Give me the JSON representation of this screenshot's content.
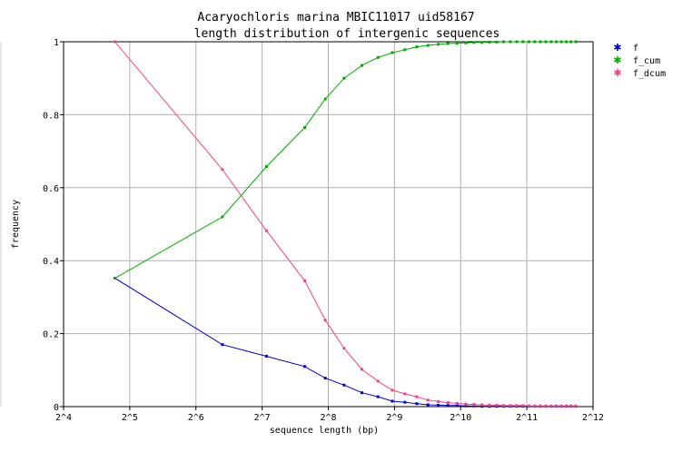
{
  "chart_data": {
    "type": "line",
    "title": "Acaryochloris marina MBIC11017 uid58167",
    "subtitle": "length distribution of intergenic sequences",
    "xlabel": "sequence length (bp)",
    "ylabel": "frequency",
    "x_scale": "log2",
    "xlim": [
      16,
      4096
    ],
    "ylim": [
      0,
      1
    ],
    "x_ticks": [
      "2^4",
      "2^5",
      "2^6",
      "2^7",
      "2^8",
      "2^9",
      "2^10",
      "2^11",
      "2^12"
    ],
    "y_ticks": [
      "0",
      "0.2",
      "0.4",
      "0.6",
      "0.8",
      "1"
    ],
    "grid": true,
    "legend_position": "top-right",
    "x": [
      27.4,
      84.4,
      134,
      200,
      248,
      302,
      364,
      431,
      500,
      571,
      647,
      727,
      810,
      896,
      986,
      1081,
      1178,
      1279,
      1385,
      1493,
      1606,
      1722,
      1842,
      1966,
      2094,
      2225,
      2360,
      2499,
      2642,
      2789,
      2940,
      3094,
      3250,
      3420
    ],
    "series": [
      {
        "name": "f",
        "color": "#0000cc",
        "values": [
          0.352,
          0.17,
          0.138,
          0.11,
          0.078,
          0.059,
          0.038,
          0.027,
          0.015,
          0.012,
          0.008,
          0.005,
          0.004,
          0.003,
          0.003,
          0.002,
          0.002,
          0.001,
          0.001,
          0.001,
          0.001,
          0.001,
          0.001,
          0.001,
          0.001,
          0.001,
          0.001,
          0.001,
          0.001,
          0.001,
          0.001,
          0.001,
          0.001,
          0.001
        ]
      },
      {
        "name": "f_cum",
        "color": "#00aa00",
        "values": [
          0.352,
          0.52,
          0.658,
          0.765,
          0.843,
          0.9,
          0.935,
          0.957,
          0.97,
          0.978,
          0.986,
          0.99,
          0.993,
          0.995,
          0.996,
          0.997,
          0.998,
          0.998,
          0.999,
          0.999,
          1,
          1,
          1,
          1,
          1,
          1,
          1,
          1,
          1,
          1,
          1,
          1,
          1,
          1
        ]
      },
      {
        "name": "f_dcum",
        "color": "#ee4488",
        "values": [
          1,
          0.65,
          0.482,
          0.345,
          0.237,
          0.16,
          0.102,
          0.07,
          0.045,
          0.035,
          0.027,
          0.018,
          0.014,
          0.011,
          0.009,
          0.007,
          0.006,
          0.005,
          0.004,
          0.004,
          0.003,
          0.003,
          0.003,
          0.003,
          0.002,
          0.002,
          0.002,
          0.002,
          0.002,
          0.002,
          0.002,
          0.002,
          0.002,
          0.002
        ]
      }
    ]
  }
}
